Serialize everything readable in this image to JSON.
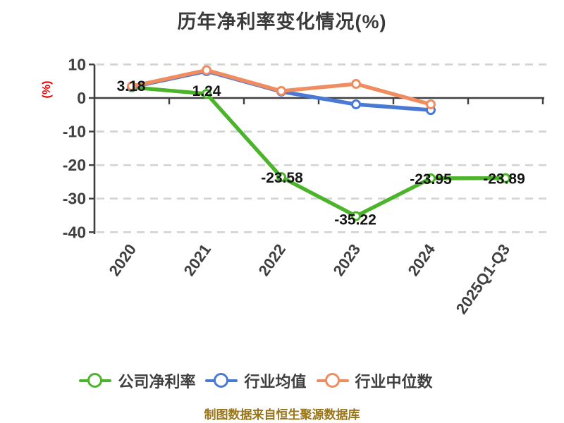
{
  "page": {
    "background": "#ffffff"
  },
  "footer": {
    "text": "制图数据来自恒生聚源数据库",
    "color": "#9a7517"
  },
  "chart_data": {
    "type": "line",
    "title": "历年净利率变化情况(%)",
    "ylabel": "(%)",
    "ylabel_color": "#e60000",
    "categories": [
      "2020",
      "2021",
      "2022",
      "2023",
      "2024",
      "2025Q1-Q3"
    ],
    "yticks": [
      10,
      0,
      -10,
      -20,
      -30,
      -40
    ],
    "ylim": [
      -40,
      10
    ],
    "grid": {
      "style": "dashed",
      "color": "#d3d3d3"
    },
    "axis_color": "#3f3f3f",
    "tick_label_color": "#3f3f3f",
    "data_label_color": "#141414",
    "legend_position": "bottom",
    "series": [
      {
        "name": "公司净利率",
        "color": "#4bb42a",
        "marker": "circle-hollow",
        "values": [
          3.18,
          1.24,
          -23.58,
          -35.22,
          -23.95,
          -23.89
        ],
        "data_labels": [
          "3.18",
          "1.24",
          "-23.58",
          "-35.22",
          "-23.95",
          "-23.89"
        ]
      },
      {
        "name": "行业均值",
        "color": "#4a79d4",
        "marker": "circle-hollow",
        "values": [
          3.3,
          8.0,
          1.9,
          -1.9,
          -3.6,
          null
        ],
        "data_labels": null
      },
      {
        "name": "行业中位数",
        "color": "#ef8c60",
        "marker": "circle-hollow",
        "values": [
          3.5,
          8.3,
          2.1,
          4.2,
          -1.9,
          null
        ],
        "data_labels": null
      }
    ]
  }
}
